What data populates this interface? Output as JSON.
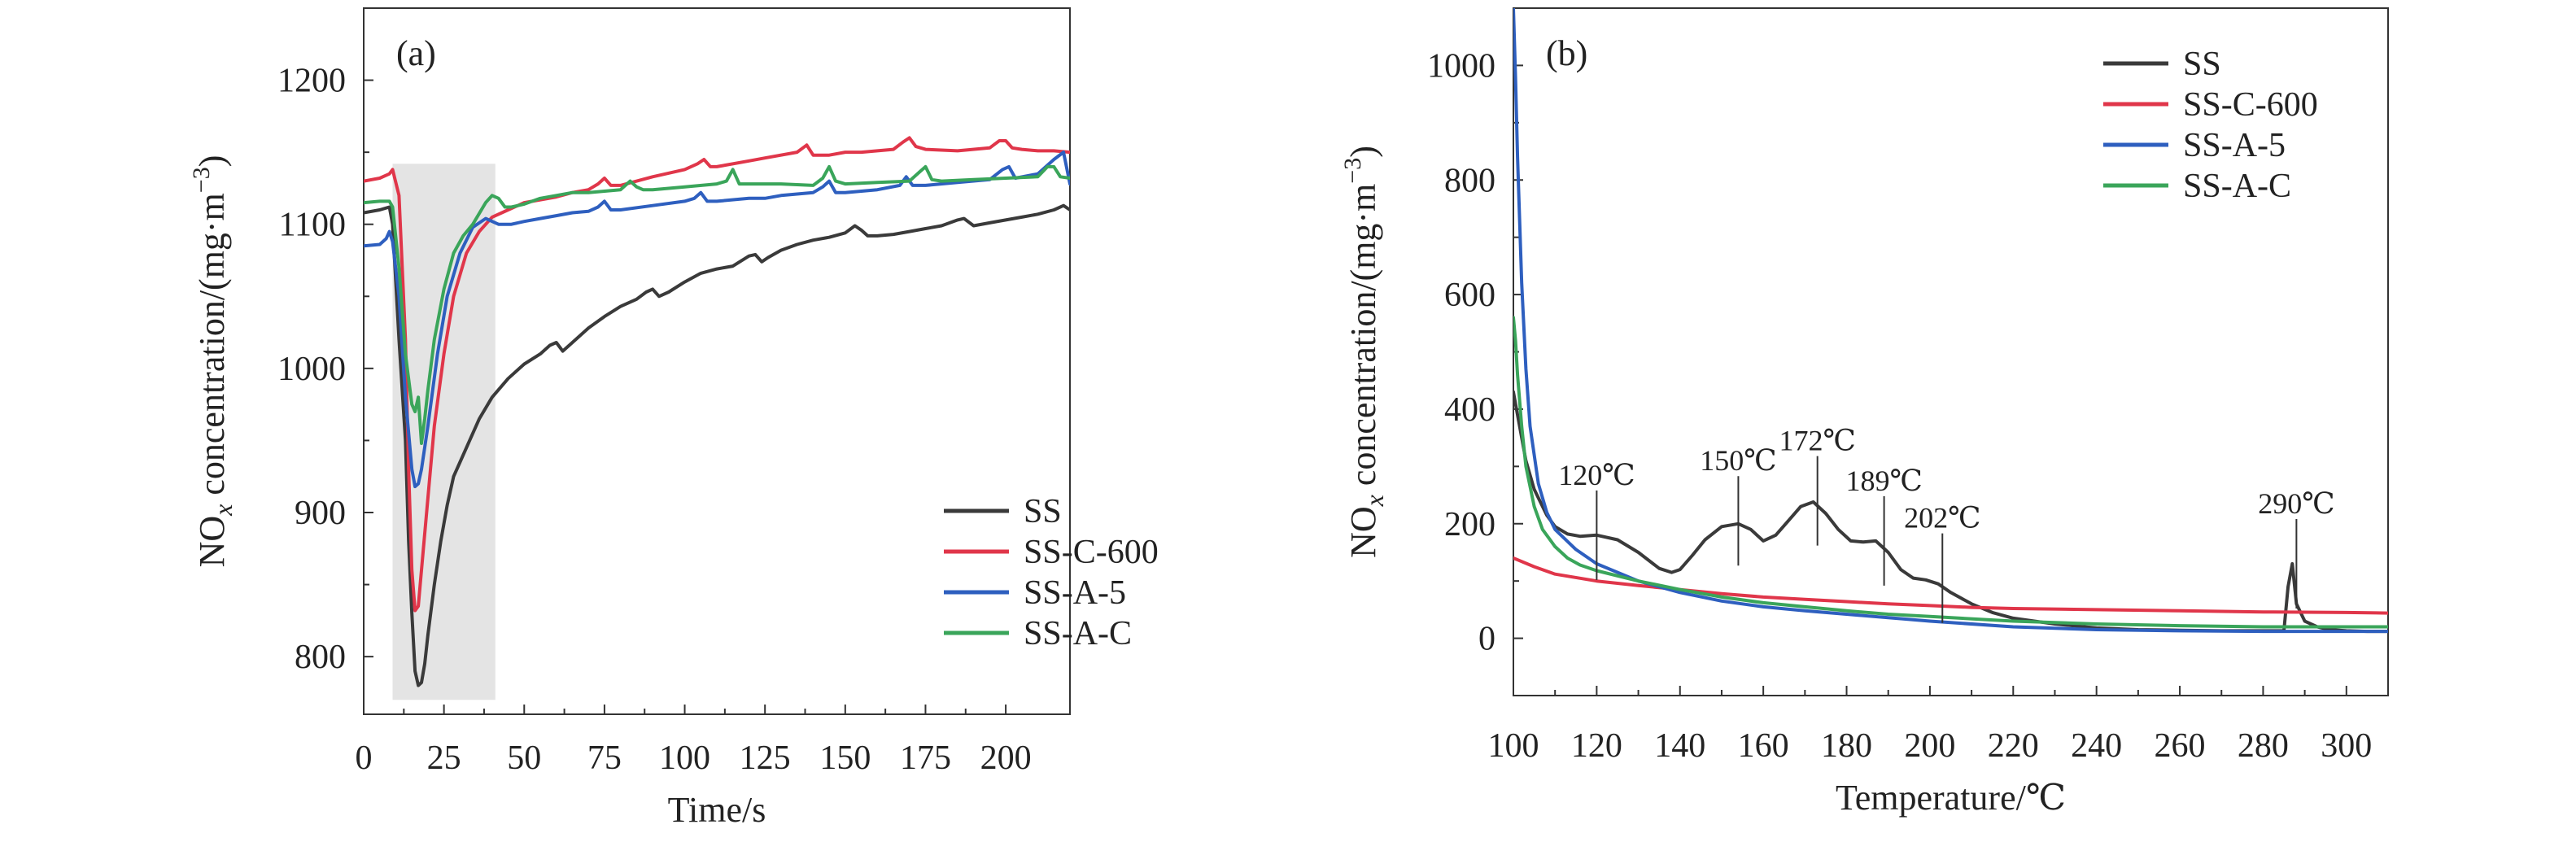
{
  "chart_data": [
    {
      "type": "line",
      "panel_label": "(a)",
      "xlabel": "Time/s",
      "ylabel": "NOx concentration/(mg·m−3)",
      "ylabel_parts": {
        "prefix": "NO",
        "subscript": "x",
        "middle": " concentration/(mg·m",
        "superscript": "−3",
        "suffix": ")"
      },
      "xlim": [
        0,
        220
      ],
      "ylim": [
        760,
        1250
      ],
      "xticks": [
        0,
        25,
        50,
        75,
        100,
        125,
        150,
        175,
        200
      ],
      "yticks": [
        800,
        900,
        1000,
        1100,
        1200
      ],
      "highlight_region": {
        "x": [
          9,
          41
        ],
        "y": [
          770,
          1142
        ]
      },
      "legend_position": "bottom-right",
      "series": [
        {
          "name": "SS",
          "color": "#3a3a3a",
          "x": [
            0,
            5,
            8,
            9,
            11,
            13,
            14,
            15,
            16,
            17,
            18,
            19,
            20,
            22,
            24,
            26,
            28,
            30,
            33,
            36,
            40,
            45,
            50,
            55,
            58,
            60,
            62,
            65,
            70,
            75,
            80,
            85,
            88,
            90,
            92,
            95,
            100,
            105,
            110,
            115,
            120,
            122,
            124,
            126,
            130,
            135,
            140,
            145,
            150,
            153,
            155,
            157,
            160,
            165,
            170,
            175,
            180,
            185,
            187,
            190,
            195,
            200,
            205,
            210,
            215,
            218,
            220
          ],
          "y": [
            1108,
            1110,
            1112,
            1100,
            1020,
            950,
            880,
            830,
            790,
            780,
            782,
            795,
            815,
            850,
            880,
            905,
            925,
            935,
            950,
            965,
            980,
            993,
            1003,
            1010,
            1016,
            1018,
            1012,
            1018,
            1028,
            1036,
            1043,
            1048,
            1053,
            1055,
            1050,
            1053,
            1060,
            1066,
            1069,
            1071,
            1078,
            1079,
            1074,
            1077,
            1082,
            1086,
            1089,
            1091,
            1094,
            1099,
            1096,
            1092,
            1092,
            1093,
            1095,
            1097,
            1099,
            1103,
            1104,
            1099,
            1101,
            1103,
            1105,
            1107,
            1110,
            1113,
            1110
          ]
        },
        {
          "name": "SS-C-600",
          "color": "#e0364a",
          "x": [
            0,
            5,
            8,
            9,
            11,
            13,
            14,
            15,
            16,
            17,
            18,
            20,
            22,
            25,
            28,
            32,
            36,
            40,
            45,
            50,
            55,
            60,
            65,
            70,
            73,
            75,
            77,
            80,
            90,
            100,
            104,
            106,
            108,
            110,
            120,
            125,
            135,
            138,
            140,
            145,
            150,
            155,
            165,
            168,
            170,
            172,
            175,
            185,
            195,
            198,
            200,
            202,
            205,
            210,
            215,
            220
          ],
          "y": [
            1130,
            1132,
            1135,
            1138,
            1120,
            1020,
            930,
            860,
            832,
            835,
            860,
            910,
            960,
            1010,
            1050,
            1080,
            1095,
            1105,
            1110,
            1115,
            1117,
            1119,
            1122,
            1124,
            1128,
            1132,
            1127,
            1127,
            1133,
            1138,
            1142,
            1145,
            1140,
            1140,
            1144,
            1146,
            1150,
            1155,
            1148,
            1148,
            1150,
            1150,
            1152,
            1157,
            1160,
            1154,
            1152,
            1151,
            1153,
            1158,
            1158,
            1153,
            1152,
            1151,
            1151,
            1150
          ]
        },
        {
          "name": "SS-A-5",
          "color": "#2e5fbf",
          "x": [
            0,
            5,
            7,
            8,
            9,
            11,
            13,
            15,
            16,
            17,
            18,
            20,
            23,
            26,
            30,
            34,
            38,
            42,
            46,
            50,
            55,
            60,
            65,
            70,
            73,
            75,
            77,
            80,
            90,
            100,
            103,
            105,
            107,
            110,
            120,
            125,
            130,
            135,
            140,
            143,
            145,
            147,
            150,
            160,
            167,
            169,
            171,
            175,
            185,
            195,
            199,
            201,
            203,
            210,
            215,
            218,
            220
          ],
          "y": [
            1085,
            1086,
            1090,
            1095,
            1088,
            1050,
            980,
            930,
            918,
            920,
            930,
            960,
            1010,
            1050,
            1080,
            1098,
            1104,
            1100,
            1100,
            1102,
            1104,
            1106,
            1108,
            1109,
            1112,
            1116,
            1110,
            1110,
            1113,
            1116,
            1118,
            1122,
            1116,
            1116,
            1118,
            1118,
            1120,
            1121,
            1122,
            1126,
            1130,
            1122,
            1122,
            1124,
            1127,
            1133,
            1127,
            1127,
            1129,
            1131,
            1138,
            1140,
            1132,
            1135,
            1145,
            1150,
            1128
          ]
        },
        {
          "name": "SS-A-C",
          "color": "#3aa55a",
          "x": [
            0,
            5,
            8,
            9,
            11,
            13,
            15,
            16,
            17,
            18,
            19,
            20,
            22,
            25,
            28,
            31,
            34,
            38,
            40,
            42,
            44,
            46,
            50,
            55,
            60,
            65,
            70,
            75,
            80,
            83,
            85,
            87,
            90,
            100,
            110,
            113,
            115,
            117,
            120,
            130,
            140,
            143,
            145,
            147,
            150,
            160,
            170,
            173,
            175,
            177,
            180,
            190,
            200,
            210,
            213,
            215,
            217,
            220
          ],
          "y": [
            1115,
            1116,
            1116,
            1112,
            1070,
            1010,
            975,
            970,
            980,
            948,
            965,
            985,
            1020,
            1055,
            1080,
            1092,
            1100,
            1115,
            1120,
            1118,
            1112,
            1112,
            1114,
            1118,
            1120,
            1122,
            1122,
            1123,
            1124,
            1130,
            1126,
            1124,
            1124,
            1126,
            1128,
            1130,
            1138,
            1128,
            1128,
            1128,
            1127,
            1132,
            1140,
            1130,
            1128,
            1129,
            1130,
            1136,
            1140,
            1131,
            1130,
            1131,
            1132,
            1133,
            1140,
            1140,
            1133,
            1132
          ]
        }
      ]
    },
    {
      "type": "line",
      "panel_label": "(b)",
      "xlabel": "Temperature/℃",
      "ylabel": "NOx concentration/(mg·m−3)",
      "ylabel_parts": {
        "prefix": "NO",
        "subscript": "x",
        "middle": " concentration/(mg·m",
        "superscript": "−3",
        "suffix": ")"
      },
      "xlim": [
        100,
        310
      ],
      "ylim": [
        -100,
        1100
      ],
      "xticks": [
        100,
        120,
        140,
        160,
        180,
        200,
        220,
        240,
        260,
        280,
        300
      ],
      "yticks": [
        0,
        200,
        400,
        600,
        800,
        1000
      ],
      "legend_position": "top-right",
      "annotations": [
        {
          "text": "120℃",
          "x": 120,
          "y": 180
        },
        {
          "text": "150℃",
          "x": 154,
          "y": 205
        },
        {
          "text": "172℃",
          "x": 173,
          "y": 240
        },
        {
          "text": "189℃",
          "x": 189,
          "y": 170
        },
        {
          "text": "202℃",
          "x": 203,
          "y": 105
        },
        {
          "text": "290℃",
          "x": 288,
          "y": 130
        }
      ],
      "series": [
        {
          "name": "SS",
          "color": "#3a3a3a",
          "x": [
            100,
            101,
            103,
            105,
            108,
            110,
            113,
            116,
            120,
            125,
            130,
            135,
            138,
            140,
            143,
            146,
            150,
            154,
            157,
            160,
            163,
            166,
            169,
            172,
            175,
            178,
            181,
            184,
            187,
            190,
            193,
            196,
            199,
            202,
            205,
            210,
            215,
            220,
            230,
            240,
            250,
            260,
            270,
            280,
            285,
            286,
            287,
            288,
            290,
            293,
            296,
            300,
            305,
            310
          ],
          "y": [
            430,
            390,
            310,
            260,
            215,
            195,
            182,
            178,
            180,
            172,
            150,
            122,
            115,
            120,
            145,
            172,
            195,
            200,
            190,
            170,
            180,
            205,
            230,
            238,
            218,
            190,
            170,
            168,
            170,
            150,
            120,
            105,
            102,
            95,
            80,
            60,
            45,
            35,
            25,
            18,
            15,
            14,
            13,
            13,
            13,
            90,
            130,
            60,
            30,
            20,
            15,
            13,
            12,
            12
          ]
        },
        {
          "name": "SS-C-600",
          "color": "#e0364a",
          "x": [
            100,
            105,
            110,
            120,
            130,
            140,
            150,
            160,
            170,
            180,
            190,
            200,
            210,
            220,
            240,
            260,
            280,
            300,
            310
          ],
          "y": [
            140,
            125,
            112,
            100,
            92,
            85,
            78,
            72,
            68,
            64,
            60,
            57,
            54,
            52,
            50,
            48,
            46,
            45,
            44
          ]
        },
        {
          "name": "SS-A-5",
          "color": "#2e5fbf",
          "x": [
            100,
            100.5,
            101,
            102,
            103,
            104,
            106,
            108,
            110,
            115,
            120,
            130,
            140,
            150,
            160,
            170,
            180,
            190,
            200,
            220,
            240,
            260,
            280,
            300,
            310
          ],
          "y": [
            1100,
            980,
            840,
            620,
            470,
            370,
            270,
            220,
            190,
            155,
            130,
            100,
            80,
            65,
            55,
            48,
            42,
            36,
            30,
            20,
            15,
            13,
            12,
            12,
            12
          ]
        },
        {
          "name": "SS-A-C",
          "color": "#3aa55a",
          "x": [
            100,
            100.5,
            101,
            102,
            103,
            105,
            107,
            110,
            113,
            116,
            120,
            130,
            140,
            150,
            160,
            170,
            180,
            190,
            200,
            220,
            240,
            260,
            280,
            300,
            310
          ],
          "y": [
            560,
            520,
            460,
            370,
            300,
            230,
            190,
            160,
            140,
            128,
            118,
            100,
            85,
            72,
            62,
            55,
            48,
            42,
            38,
            30,
            25,
            22,
            20,
            20,
            20
          ]
        }
      ]
    }
  ]
}
